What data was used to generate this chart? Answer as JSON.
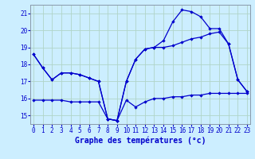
{
  "xlabel": "Graphe des températures (°c)",
  "bg_color": "#cceeff",
  "grid_color": "#aaddcc",
  "line_color": "#0000cc",
  "hours": [
    0,
    1,
    2,
    3,
    4,
    5,
    6,
    7,
    8,
    9,
    10,
    11,
    12,
    13,
    14,
    15,
    16,
    17,
    18,
    19,
    20,
    21,
    22,
    23
  ],
  "temp_main": [
    18.6,
    17.8,
    17.1,
    17.5,
    17.5,
    17.4,
    17.2,
    17.0,
    14.8,
    14.7,
    17.0,
    18.3,
    18.9,
    19.0,
    19.4,
    20.5,
    21.2,
    21.1,
    20.8,
    20.1,
    20.1,
    19.2,
    17.1,
    16.4
  ],
  "temp_line2": [
    18.6,
    17.8,
    17.1,
    17.5,
    17.5,
    17.4,
    17.2,
    17.0,
    14.8,
    14.7,
    17.0,
    18.3,
    18.9,
    19.0,
    19.0,
    19.1,
    19.3,
    19.5,
    19.6,
    19.8,
    19.9,
    19.2,
    17.1,
    16.4
  ],
  "temp_flat": [
    15.9,
    15.9,
    15.9,
    15.9,
    15.8,
    15.8,
    15.8,
    15.8,
    14.8,
    14.7,
    15.9,
    15.5,
    15.8,
    16.0,
    16.0,
    16.1,
    16.1,
    16.2,
    16.2,
    16.3,
    16.3,
    16.3,
    16.3,
    16.3
  ],
  "ylim": [
    14.5,
    21.5
  ],
  "yticks": [
    15,
    16,
    17,
    18,
    19,
    20,
    21
  ],
  "xlim": [
    -0.3,
    23.3
  ],
  "xticks": [
    0,
    1,
    2,
    3,
    4,
    5,
    6,
    7,
    8,
    9,
    10,
    11,
    12,
    13,
    14,
    15,
    16,
    17,
    18,
    19,
    20,
    21,
    22,
    23
  ],
  "figsize": [
    3.2,
    2.0
  ],
  "dpi": 100
}
